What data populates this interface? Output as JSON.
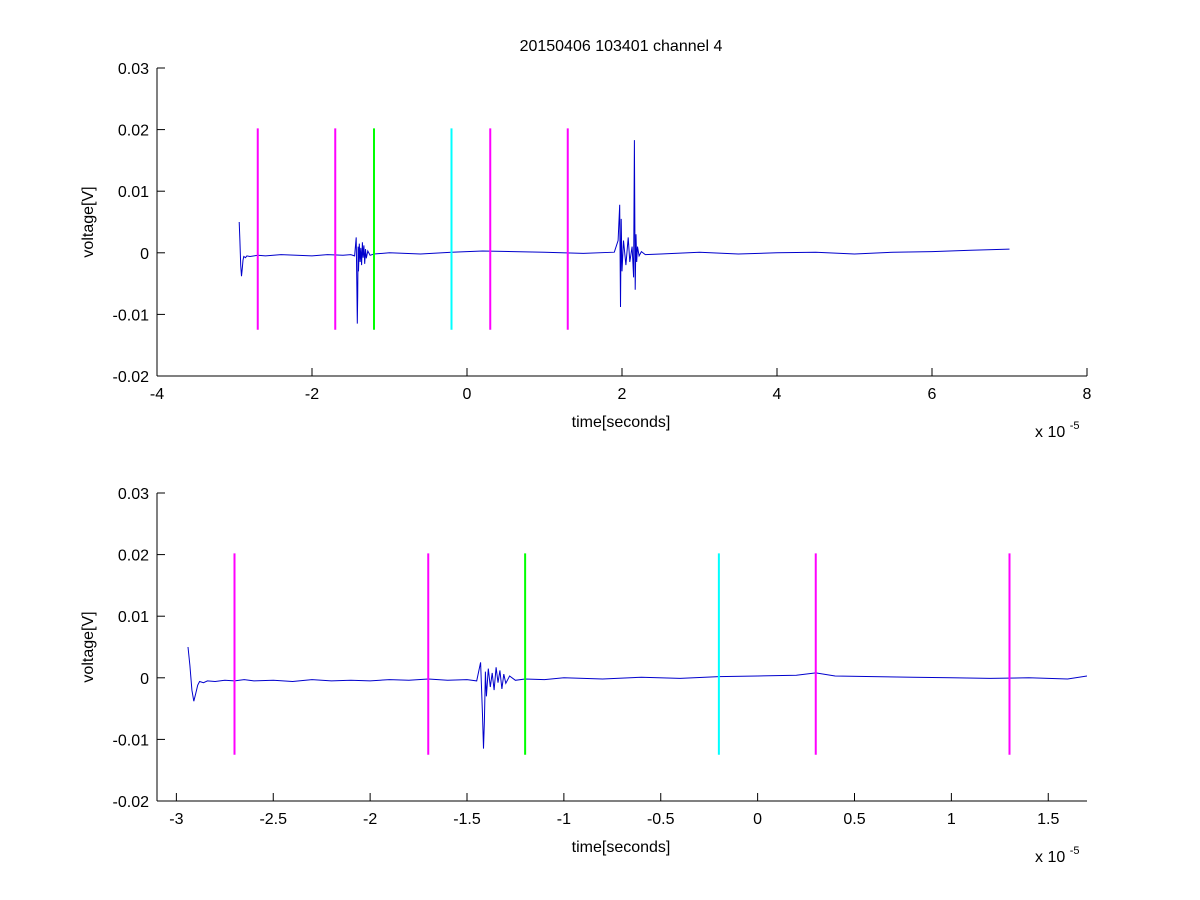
{
  "chart_data": [
    {
      "type": "line",
      "title": "20150406 103401 channel 4",
      "xlabel": "time[seconds]",
      "ylabel": "voltage[V]",
      "x_exponent_label": "x 10",
      "x_exponent": "-5",
      "x_scale": 1e-05,
      "xlim": [
        -4,
        8
      ],
      "ylim": [
        -0.02,
        0.03
      ],
      "xticks": [
        -4,
        -2,
        0,
        2,
        4,
        6,
        8
      ],
      "xtick_labels": [
        "-4",
        "-2",
        "0",
        "2",
        "4",
        "6",
        "8"
      ],
      "yticks": [
        -0.02,
        -0.01,
        0,
        0.01,
        0.02,
        0.03
      ],
      "ytick_labels": [
        "-0.02",
        "-0.01",
        "0",
        "0.01",
        "0.02",
        "0.03"
      ],
      "grid": false,
      "legend": "none",
      "series": [
        {
          "color": "#0000cc",
          "x": [
            -2.94,
            -2.93,
            -2.92,
            -2.91,
            -2.9,
            -2.89,
            -2.88,
            -2.86,
            -2.84,
            -2.8,
            -2.7,
            -2.6,
            -2.4,
            -2.2,
            -2.0,
            -1.8,
            -1.6,
            -1.5,
            -1.45,
            -1.43,
            -1.42,
            -1.415,
            -1.41,
            -1.405,
            -1.4,
            -1.39,
            -1.38,
            -1.37,
            -1.36,
            -1.35,
            -1.34,
            -1.33,
            -1.32,
            -1.31,
            -1.3,
            -1.28,
            -1.25,
            -1.2,
            -1.0,
            -0.6,
            -0.2,
            0.2,
            0.6,
            1.0,
            1.5,
            1.9,
            1.95,
            1.97,
            1.98,
            1.99,
            2.0,
            2.02,
            2.05,
            2.08,
            2.1,
            2.13,
            2.15,
            2.16,
            2.17,
            2.18,
            2.19,
            2.2,
            2.22,
            2.25,
            2.3,
            2.5,
            3.0,
            3.5,
            4.0,
            4.5,
            5.0,
            5.5,
            6.0,
            6.5,
            7.0
          ],
          "y": [
            0.005,
            0.002,
            -0.002,
            -0.0038,
            -0.0025,
            -0.0012,
            -0.0006,
            -0.0008,
            -0.0005,
            -0.0006,
            -0.0004,
            -0.0005,
            -0.0003,
            -0.0004,
            -0.0005,
            -0.0003,
            -0.0004,
            -0.0003,
            -0.0005,
            0.0025,
            -0.006,
            -0.0115,
            -0.007,
            0.001,
            -0.003,
            0.0015,
            -0.0015,
            0.0008,
            -0.002,
            0.0017,
            -0.0008,
            0.0012,
            -0.0018,
            0.0006,
            -0.0009,
            0.0003,
            -0.0004,
            -0.0002,
            0.0,
            -0.0002,
            0.0001,
            0.0003,
            0.0002,
            0.0001,
            -0.0001,
            0.0001,
            0.002,
            0.0078,
            -0.0088,
            0.0055,
            -0.003,
            0.002,
            -0.002,
            0.0025,
            -0.0015,
            0.001,
            -0.004,
            0.0183,
            -0.006,
            0.003,
            -0.0015,
            0.001,
            -0.0005,
            0.0002,
            -0.0003,
            -0.0002,
            0.0001,
            -0.0002,
            0.0,
            0.0001,
            -0.0002,
            0.0001,
            0.0002,
            0.0004,
            0.0006
          ]
        }
      ],
      "markers": [
        {
          "x": -2.7,
          "color": "#ff00ff",
          "y_from": -0.0125,
          "y_to": 0.0202
        },
        {
          "x": -1.7,
          "color": "#ff00ff",
          "y_from": -0.0125,
          "y_to": 0.0202
        },
        {
          "x": -1.2,
          "color": "#00ff00",
          "y_from": -0.0125,
          "y_to": 0.0202
        },
        {
          "x": -0.2,
          "color": "#00ffff",
          "y_from": -0.0125,
          "y_to": 0.0202
        },
        {
          "x": 0.3,
          "color": "#ff00ff",
          "y_from": -0.0125,
          "y_to": 0.0202
        },
        {
          "x": 1.3,
          "color": "#ff00ff",
          "y_from": -0.0125,
          "y_to": 0.0202
        }
      ]
    },
    {
      "type": "line",
      "title": "",
      "xlabel": "time[seconds]",
      "ylabel": "voltage[V]",
      "x_exponent_label": "x 10",
      "x_exponent": "-5",
      "x_scale": 1e-05,
      "xlim": [
        -3.1,
        1.7
      ],
      "ylim": [
        -0.02,
        0.03
      ],
      "xticks": [
        -3,
        -2.5,
        -2,
        -1.5,
        -1,
        -0.5,
        0,
        0.5,
        1,
        1.5
      ],
      "xtick_labels": [
        "-3",
        "-2.5",
        "-2",
        "-1.5",
        "-1",
        "-0.5",
        "0",
        "0.5",
        "1",
        "1.5"
      ],
      "yticks": [
        -0.02,
        -0.01,
        0,
        0.01,
        0.02,
        0.03
      ],
      "ytick_labels": [
        "-0.02",
        "-0.01",
        "0",
        "0.01",
        "0.02",
        "0.03"
      ],
      "grid": false,
      "legend": "none",
      "series": [
        {
          "color": "#0000cc",
          "x": [
            -2.94,
            -2.93,
            -2.92,
            -2.91,
            -2.9,
            -2.89,
            -2.88,
            -2.86,
            -2.84,
            -2.8,
            -2.75,
            -2.7,
            -2.65,
            -2.6,
            -2.5,
            -2.4,
            -2.3,
            -2.2,
            -2.1,
            -2.0,
            -1.9,
            -1.8,
            -1.7,
            -1.6,
            -1.5,
            -1.45,
            -1.43,
            -1.42,
            -1.415,
            -1.41,
            -1.405,
            -1.4,
            -1.39,
            -1.38,
            -1.37,
            -1.36,
            -1.35,
            -1.34,
            -1.33,
            -1.32,
            -1.31,
            -1.3,
            -1.28,
            -1.25,
            -1.2,
            -1.1,
            -1.0,
            -0.8,
            -0.6,
            -0.4,
            -0.2,
            0.0,
            0.2,
            0.3,
            0.4,
            0.6,
            0.8,
            1.0,
            1.2,
            1.4,
            1.6,
            1.7
          ],
          "y": [
            0.005,
            0.002,
            -0.002,
            -0.0038,
            -0.0025,
            -0.0012,
            -0.0006,
            -0.0008,
            -0.0005,
            -0.0006,
            -0.0004,
            -0.0005,
            -0.0003,
            -0.0005,
            -0.0004,
            -0.0006,
            -0.0003,
            -0.0005,
            -0.0004,
            -0.0005,
            -0.0003,
            -0.0004,
            -0.0002,
            -0.0004,
            -0.0003,
            -0.0005,
            0.0025,
            -0.006,
            -0.0115,
            -0.007,
            0.001,
            -0.003,
            0.0015,
            -0.0015,
            0.0008,
            -0.002,
            0.0017,
            -0.0008,
            0.0012,
            -0.0018,
            0.0006,
            -0.0009,
            0.0003,
            -0.0004,
            -0.0002,
            -0.0003,
            0.0,
            -0.0002,
            0.0001,
            -0.0001,
            0.0002,
            0.0003,
            0.0004,
            0.0008,
            0.0003,
            0.0002,
            0.0001,
            0.0,
            -0.0001,
            0.0,
            -0.0002,
            0.0003
          ]
        }
      ],
      "markers": [
        {
          "x": -2.7,
          "color": "#ff00ff",
          "y_from": -0.0125,
          "y_to": 0.0202
        },
        {
          "x": -1.7,
          "color": "#ff00ff",
          "y_from": -0.0125,
          "y_to": 0.0202
        },
        {
          "x": -1.2,
          "color": "#00ff00",
          "y_from": -0.0125,
          "y_to": 0.0202
        },
        {
          "x": -0.2,
          "color": "#00ffff",
          "y_from": -0.0125,
          "y_to": 0.0202
        },
        {
          "x": 0.3,
          "color": "#ff00ff",
          "y_from": -0.0125,
          "y_to": 0.0202
        },
        {
          "x": 1.3,
          "color": "#ff00ff",
          "y_from": -0.0125,
          "y_to": 0.0202
        }
      ]
    }
  ]
}
